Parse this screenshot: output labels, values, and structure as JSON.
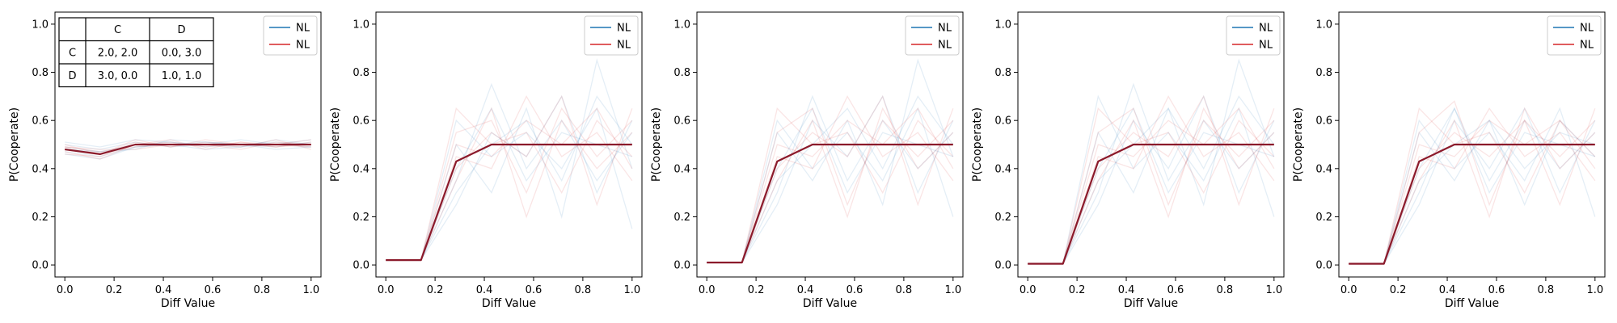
{
  "chart_data": [
    {
      "type": "line",
      "xlabel": "Diff Value",
      "ylabel": "P(Cooperate)",
      "xlim": [
        -0.04,
        1.04
      ],
      "ylim": [
        -0.05,
        1.05
      ],
      "xticks": [
        "0.0",
        "0.2",
        "0.4",
        "0.6",
        "0.8",
        "1.0"
      ],
      "yticks": [
        "0.0",
        "0.2",
        "0.4",
        "0.6",
        "0.8",
        "1.0"
      ],
      "grid": false,
      "legend": {
        "placement": "top-right",
        "entries": [
          {
            "label": "NL",
            "color": "#1f77b4"
          },
          {
            "label": "NL",
            "color": "#d62728"
          }
        ]
      },
      "payoff_table": {
        "header": [
          "",
          "C",
          "D"
        ],
        "rows": [
          [
            "C",
            "2.0, 2.0",
            "0.0, 3.0"
          ],
          [
            "D",
            "3.0, 0.0",
            "1.0, 1.0"
          ]
        ]
      },
      "x": [
        0.0,
        0.143,
        0.286,
        0.429,
        0.571,
        0.714,
        0.857,
        1.0
      ],
      "series": [
        {
          "color": "#8b1a2b",
          "values": [
            0.48,
            0.46,
            0.5,
            0.5,
            0.5,
            0.5,
            0.5,
            0.5
          ]
        }
      ],
      "background_runs": {
        "blue": [
          [
            0.49,
            0.47,
            0.5,
            0.51,
            0.49,
            0.5,
            0.51,
            0.5
          ],
          [
            0.47,
            0.45,
            0.49,
            0.5,
            0.51,
            0.5,
            0.49,
            0.51
          ],
          [
            0.5,
            0.48,
            0.51,
            0.49,
            0.5,
            0.52,
            0.5,
            0.49
          ],
          [
            0.46,
            0.44,
            0.49,
            0.5,
            0.48,
            0.49,
            0.5,
            0.52
          ],
          [
            0.51,
            0.49,
            0.52,
            0.51,
            0.5,
            0.49,
            0.52,
            0.5
          ],
          [
            0.48,
            0.47,
            0.48,
            0.52,
            0.51,
            0.5,
            0.48,
            0.49
          ]
        ],
        "red": [
          [
            0.48,
            0.46,
            0.51,
            0.49,
            0.52,
            0.5,
            0.49,
            0.51
          ],
          [
            0.47,
            0.44,
            0.5,
            0.51,
            0.49,
            0.51,
            0.5,
            0.49
          ],
          [
            0.49,
            0.47,
            0.49,
            0.5,
            0.5,
            0.48,
            0.51,
            0.5
          ],
          [
            0.5,
            0.46,
            0.52,
            0.49,
            0.51,
            0.5,
            0.5,
            0.52
          ],
          [
            0.46,
            0.45,
            0.5,
            0.52,
            0.48,
            0.51,
            0.49,
            0.5
          ],
          [
            0.49,
            0.48,
            0.48,
            0.5,
            0.5,
            0.49,
            0.52,
            0.48
          ]
        ]
      }
    },
    {
      "type": "line",
      "xlabel": "Diff Value",
      "ylabel": "P(Cooperate)",
      "xlim": [
        -0.04,
        1.04
      ],
      "ylim": [
        -0.05,
        1.05
      ],
      "xticks": [
        "0.0",
        "0.2",
        "0.4",
        "0.6",
        "0.8",
        "1.0"
      ],
      "yticks": [
        "0.0",
        "0.2",
        "0.4",
        "0.6",
        "0.8",
        "1.0"
      ],
      "grid": false,
      "legend": {
        "placement": "top-right",
        "entries": [
          {
            "label": "NL",
            "color": "#1f77b4"
          },
          {
            "label": "NL",
            "color": "#d62728"
          }
        ]
      },
      "x": [
        0.0,
        0.143,
        0.286,
        0.429,
        0.571,
        0.714,
        0.857,
        1.0
      ],
      "series": [
        {
          "color": "#8b1a2b",
          "values": [
            0.02,
            0.02,
            0.43,
            0.5,
            0.5,
            0.5,
            0.5,
            0.5
          ]
        }
      ],
      "background_runs": {
        "blue": [
          [
            0.02,
            0.02,
            0.35,
            0.75,
            0.4,
            0.6,
            0.35,
            0.55
          ],
          [
            0.02,
            0.02,
            0.5,
            0.3,
            0.65,
            0.2,
            0.85,
            0.4
          ],
          [
            0.02,
            0.02,
            0.25,
            0.55,
            0.45,
            0.7,
            0.3,
            0.6
          ],
          [
            0.02,
            0.02,
            0.6,
            0.45,
            0.55,
            0.4,
            0.65,
            0.15
          ],
          [
            0.02,
            0.02,
            0.4,
            0.65,
            0.35,
            0.55,
            0.5,
            0.45
          ],
          [
            0.02,
            0.02,
            0.3,
            0.5,
            0.6,
            0.35,
            0.7,
            0.5
          ]
        ],
        "red": [
          [
            0.02,
            0.02,
            0.55,
            0.6,
            0.3,
            0.65,
            0.45,
            0.6
          ],
          [
            0.02,
            0.02,
            0.45,
            0.4,
            0.7,
            0.45,
            0.55,
            0.35
          ],
          [
            0.02,
            0.02,
            0.35,
            0.65,
            0.2,
            0.6,
            0.4,
            0.55
          ],
          [
            0.02,
            0.02,
            0.65,
            0.5,
            0.55,
            0.3,
            0.6,
            0.45
          ],
          [
            0.02,
            0.02,
            0.4,
            0.55,
            0.45,
            0.7,
            0.25,
            0.65
          ],
          [
            0.02,
            0.02,
            0.5,
            0.45,
            0.6,
            0.5,
            0.65,
            0.4
          ]
        ]
      }
    },
    {
      "type": "line",
      "xlabel": "Diff Value",
      "ylabel": "P(Cooperate)",
      "xlim": [
        -0.04,
        1.04
      ],
      "ylim": [
        -0.05,
        1.05
      ],
      "xticks": [
        "0.0",
        "0.2",
        "0.4",
        "0.6",
        "0.8",
        "1.0"
      ],
      "yticks": [
        "0.0",
        "0.2",
        "0.4",
        "0.6",
        "0.8",
        "1.0"
      ],
      "grid": false,
      "legend": {
        "placement": "top-right",
        "entries": [
          {
            "label": "NL",
            "color": "#1f77b4"
          },
          {
            "label": "NL",
            "color": "#d62728"
          }
        ]
      },
      "x": [
        0.0,
        0.143,
        0.286,
        0.429,
        0.571,
        0.714,
        0.857,
        1.0
      ],
      "series": [
        {
          "color": "#8b1a2b",
          "values": [
            0.01,
            0.01,
            0.43,
            0.5,
            0.5,
            0.5,
            0.5,
            0.5
          ]
        }
      ],
      "background_runs": {
        "blue": [
          [
            0.01,
            0.01,
            0.3,
            0.7,
            0.35,
            0.6,
            0.4,
            0.55
          ],
          [
            0.01,
            0.01,
            0.55,
            0.35,
            0.6,
            0.25,
            0.85,
            0.45
          ],
          [
            0.01,
            0.01,
            0.25,
            0.6,
            0.45,
            0.7,
            0.3,
            0.6
          ],
          [
            0.01,
            0.01,
            0.6,
            0.4,
            0.55,
            0.35,
            0.65,
            0.2
          ],
          [
            0.01,
            0.01,
            0.4,
            0.65,
            0.3,
            0.55,
            0.5,
            0.45
          ],
          [
            0.01,
            0.01,
            0.35,
            0.5,
            0.65,
            0.4,
            0.7,
            0.5
          ]
        ],
        "red": [
          [
            0.01,
            0.01,
            0.55,
            0.65,
            0.25,
            0.6,
            0.45,
            0.6
          ],
          [
            0.01,
            0.01,
            0.45,
            0.4,
            0.7,
            0.45,
            0.55,
            0.35
          ],
          [
            0.01,
            0.01,
            0.35,
            0.6,
            0.2,
            0.65,
            0.4,
            0.55
          ],
          [
            0.01,
            0.01,
            0.65,
            0.5,
            0.55,
            0.3,
            0.6,
            0.45
          ],
          [
            0.01,
            0.01,
            0.4,
            0.55,
            0.45,
            0.7,
            0.25,
            0.65
          ],
          [
            0.01,
            0.01,
            0.5,
            0.45,
            0.6,
            0.5,
            0.65,
            0.4
          ]
        ]
      }
    },
    {
      "type": "line",
      "xlabel": "Diff Value",
      "ylabel": "P(Cooperate)",
      "xlim": [
        -0.04,
        1.04
      ],
      "ylim": [
        -0.05,
        1.05
      ],
      "xticks": [
        "0.0",
        "0.2",
        "0.4",
        "0.6",
        "0.8",
        "1.0"
      ],
      "yticks": [
        "0.0",
        "0.2",
        "0.4",
        "0.6",
        "0.8",
        "1.0"
      ],
      "grid": false,
      "legend": {
        "placement": "top-right",
        "entries": [
          {
            "label": "NL",
            "color": "#1f77b4"
          },
          {
            "label": "NL",
            "color": "#d62728"
          }
        ]
      },
      "x": [
        0.0,
        0.143,
        0.286,
        0.429,
        0.571,
        0.714,
        0.857,
        1.0
      ],
      "series": [
        {
          "color": "#8b1a2b",
          "values": [
            0.005,
            0.005,
            0.43,
            0.5,
            0.5,
            0.5,
            0.5,
            0.5
          ]
        }
      ],
      "background_runs": {
        "blue": [
          [
            0.005,
            0.005,
            0.3,
            0.75,
            0.35,
            0.6,
            0.4,
            0.55
          ],
          [
            0.005,
            0.005,
            0.55,
            0.3,
            0.65,
            0.25,
            0.85,
            0.45
          ],
          [
            0.005,
            0.005,
            0.25,
            0.6,
            0.4,
            0.7,
            0.3,
            0.6
          ],
          [
            0.005,
            0.005,
            0.7,
            0.4,
            0.55,
            0.35,
            0.65,
            0.2
          ],
          [
            0.005,
            0.005,
            0.4,
            0.65,
            0.3,
            0.55,
            0.5,
            0.45
          ],
          [
            0.005,
            0.005,
            0.35,
            0.5,
            0.65,
            0.4,
            0.7,
            0.5
          ]
        ],
        "red": [
          [
            0.005,
            0.005,
            0.55,
            0.65,
            0.25,
            0.6,
            0.45,
            0.6
          ],
          [
            0.005,
            0.005,
            0.45,
            0.4,
            0.7,
            0.45,
            0.55,
            0.35
          ],
          [
            0.005,
            0.005,
            0.35,
            0.6,
            0.2,
            0.65,
            0.4,
            0.55
          ],
          [
            0.005,
            0.005,
            0.65,
            0.5,
            0.55,
            0.3,
            0.6,
            0.45
          ],
          [
            0.005,
            0.005,
            0.4,
            0.55,
            0.45,
            0.7,
            0.25,
            0.65
          ],
          [
            0.005,
            0.005,
            0.5,
            0.45,
            0.6,
            0.5,
            0.65,
            0.4
          ]
        ]
      }
    },
    {
      "type": "line",
      "xlabel": "Diff Value",
      "ylabel": "P(Cooperate)",
      "xlim": [
        -0.04,
        1.04
      ],
      "ylim": [
        -0.05,
        1.05
      ],
      "xticks": [
        "0.0",
        "0.2",
        "0.4",
        "0.6",
        "0.8",
        "1.0"
      ],
      "yticks": [
        "0.0",
        "0.2",
        "0.4",
        "0.6",
        "0.8",
        "1.0"
      ],
      "grid": false,
      "legend": {
        "placement": "top-right",
        "entries": [
          {
            "label": "NL",
            "color": "#1f77b4"
          },
          {
            "label": "NL",
            "color": "#d62728"
          }
        ]
      },
      "x": [
        0.0,
        0.143,
        0.286,
        0.429,
        0.571,
        0.714,
        0.857,
        1.0
      ],
      "series": [
        {
          "color": "#8b1a2b",
          "values": [
            0.005,
            0.005,
            0.43,
            0.5,
            0.5,
            0.5,
            0.5,
            0.5
          ]
        }
      ],
      "background_runs": {
        "blue": [
          [
            0.005,
            0.005,
            0.3,
            0.65,
            0.35,
            0.6,
            0.4,
            0.55
          ],
          [
            0.005,
            0.005,
            0.55,
            0.35,
            0.6,
            0.25,
            0.6,
            0.45
          ],
          [
            0.005,
            0.005,
            0.25,
            0.6,
            0.4,
            0.65,
            0.3,
            0.6
          ],
          [
            0.005,
            0.005,
            0.6,
            0.4,
            0.55,
            0.35,
            0.65,
            0.2
          ],
          [
            0.005,
            0.005,
            0.4,
            0.65,
            0.3,
            0.55,
            0.5,
            0.45
          ],
          [
            0.005,
            0.005,
            0.35,
            0.5,
            0.6,
            0.4,
            0.55,
            0.5
          ]
        ],
        "red": [
          [
            0.005,
            0.005,
            0.55,
            0.68,
            0.25,
            0.6,
            0.45,
            0.6
          ],
          [
            0.005,
            0.005,
            0.45,
            0.4,
            0.65,
            0.45,
            0.55,
            0.35
          ],
          [
            0.005,
            0.005,
            0.35,
            0.6,
            0.2,
            0.65,
            0.4,
            0.55
          ],
          [
            0.005,
            0.005,
            0.65,
            0.5,
            0.55,
            0.3,
            0.6,
            0.45
          ],
          [
            0.005,
            0.005,
            0.4,
            0.55,
            0.45,
            0.6,
            0.25,
            0.65
          ],
          [
            0.005,
            0.005,
            0.5,
            0.45,
            0.6,
            0.5,
            0.6,
            0.4
          ]
        ]
      }
    }
  ]
}
